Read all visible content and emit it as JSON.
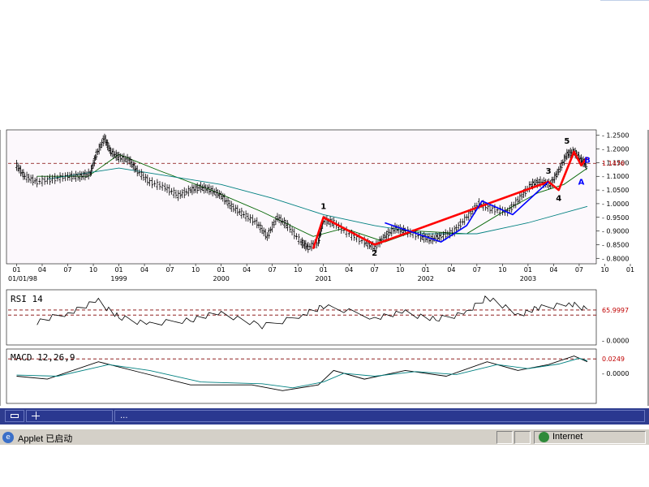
{
  "chart_data": [
    {
      "type": "candlestick",
      "panel": "price",
      "y_ticks": [
        "1.2500",
        "1.2000",
        "1.1500",
        "1.1000",
        "1.0500",
        "1.0000",
        "0.9500",
        "0.9000",
        "0.8500",
        "0.8000"
      ],
      "ylim": [
        0.78,
        1.27
      ],
      "reference_line": 1.1476,
      "reference_label": "1.1476",
      "x_month_ticks": [
        "01",
        "04",
        "07",
        "10",
        "01",
        "04",
        "07",
        "10",
        "01",
        "04",
        "07",
        "10",
        "01",
        "04",
        "07",
        "10",
        "01",
        "04",
        "07",
        "10",
        "01",
        "04",
        "07",
        "10",
        "01",
        "04",
        "07"
      ],
      "x_year_labels": [
        "01/01/98",
        "1999",
        "2000",
        "2001",
        "2002",
        "2003"
      ],
      "price_series": [
        [
          1998.0,
          1.14
        ],
        [
          1998.08,
          1.1
        ],
        [
          1998.2,
          1.08
        ],
        [
          1998.35,
          1.09
        ],
        [
          1998.5,
          1.1
        ],
        [
          1998.62,
          1.1
        ],
        [
          1998.72,
          1.11
        ],
        [
          1998.78,
          1.18
        ],
        [
          1998.86,
          1.24
        ],
        [
          1998.92,
          1.19
        ],
        [
          1999.0,
          1.17
        ],
        [
          1999.1,
          1.16
        ],
        [
          1999.18,
          1.12
        ],
        [
          1999.3,
          1.08
        ],
        [
          1999.45,
          1.06
        ],
        [
          1999.58,
          1.03
        ],
        [
          1999.7,
          1.05
        ],
        [
          1999.8,
          1.06
        ],
        [
          1999.9,
          1.05
        ],
        [
          2000.0,
          1.03
        ],
        [
          2000.1,
          0.99
        ],
        [
          2000.22,
          0.96
        ],
        [
          2000.35,
          0.93
        ],
        [
          2000.45,
          0.88
        ],
        [
          2000.55,
          0.95
        ],
        [
          2000.65,
          0.92
        ],
        [
          2000.78,
          0.86
        ],
        [
          2000.85,
          0.84
        ],
        [
          2000.95,
          0.86
        ],
        [
          2001.0,
          0.94
        ],
        [
          2001.1,
          0.93
        ],
        [
          2001.25,
          0.89
        ],
        [
          2001.4,
          0.86
        ],
        [
          2001.5,
          0.84
        ],
        [
          2001.6,
          0.88
        ],
        [
          2001.7,
          0.91
        ],
        [
          2001.8,
          0.9
        ],
        [
          2001.95,
          0.88
        ],
        [
          2002.05,
          0.87
        ],
        [
          2002.15,
          0.88
        ],
        [
          2002.28,
          0.9
        ],
        [
          2002.4,
          0.95
        ],
        [
          2002.52,
          1.0
        ],
        [
          2002.65,
          0.98
        ],
        [
          2002.8,
          0.97
        ],
        [
          2002.92,
          1.02
        ],
        [
          2003.03,
          1.07
        ],
        [
          2003.12,
          1.08
        ],
        [
          2003.22,
          1.07
        ],
        [
          2003.3,
          1.12
        ],
        [
          2003.38,
          1.18
        ],
        [
          2003.45,
          1.19
        ],
        [
          2003.52,
          1.16
        ],
        [
          2003.58,
          1.14
        ]
      ],
      "moving_averages": [
        {
          "color": "#006400",
          "points": [
            [
              1998.2,
              1.1
            ],
            [
              1998.7,
              1.1
            ],
            [
              1999.0,
              1.18
            ],
            [
              1999.4,
              1.12
            ],
            [
              1999.9,
              1.05
            ],
            [
              2000.4,
              0.97
            ],
            [
              2000.9,
              0.88
            ],
            [
              2001.2,
              0.91
            ],
            [
              2001.6,
              0.86
            ],
            [
              2001.9,
              0.9
            ],
            [
              2002.4,
              0.89
            ],
            [
              2002.8,
              0.98
            ],
            [
              2003.1,
              1.04
            ],
            [
              2003.35,
              1.07
            ],
            [
              2003.58,
              1.13
            ]
          ]
        },
        {
          "color": "#008080",
          "points": [
            [
              1998.3,
              1.09
            ],
            [
              1999.0,
              1.13
            ],
            [
              1999.5,
              1.1
            ],
            [
              2000.0,
              1.07
            ],
            [
              2000.5,
              1.02
            ],
            [
              2001.0,
              0.96
            ],
            [
              2001.5,
              0.92
            ],
            [
              2002.0,
              0.89
            ],
            [
              2002.5,
              0.89
            ],
            [
              2003.0,
              0.93
            ],
            [
              2003.58,
              0.99
            ]
          ]
        }
      ],
      "wave_lines": [
        {
          "color": "#ff0000",
          "points": [
            [
              2000.9,
              0.835
            ],
            [
              2001.0,
              0.95
            ],
            [
              2001.5,
              0.85
            ],
            [
              2003.2,
              1.08
            ],
            [
              2003.3,
              1.05
            ],
            [
              2003.45,
              1.19
            ],
            [
              2003.52,
              1.14
            ],
            [
              2003.58,
              1.17
            ]
          ]
        },
        {
          "color": "#0000ff",
          "points": [
            [
              2001.6,
              0.93
            ],
            [
              2002.15,
              0.86
            ],
            [
              2002.4,
              0.92
            ],
            [
              2002.55,
              1.01
            ],
            [
              2002.85,
              0.96
            ],
            [
              2003.2,
              1.08
            ]
          ]
        }
      ],
      "wave_labels": [
        {
          "text": "1",
          "x": 2001.0,
          "y": 0.98,
          "color": "#000000"
        },
        {
          "text": "2",
          "x": 2001.5,
          "y": 0.81,
          "color": "#000000"
        },
        {
          "text": "3",
          "x": 2003.2,
          "y": 1.11,
          "color": "#000000"
        },
        {
          "text": "4",
          "x": 2003.3,
          "y": 1.01,
          "color": "#000000"
        },
        {
          "text": "5",
          "x": 2003.38,
          "y": 1.22,
          "color": "#000000"
        },
        {
          "text": "A",
          "x": 2003.52,
          "y": 1.07,
          "color": "#0000ff"
        },
        {
          "text": "B",
          "x": 2003.58,
          "y": 1.15,
          "color": "#0000ff"
        }
      ]
    },
    {
      "type": "line",
      "panel": "rsi",
      "title": "RSI 14",
      "ylim": [
        -10,
        110
      ],
      "y_ticks": [
        "0.0000"
      ],
      "reference_line": 65.9997,
      "reference_label": "65.9997",
      "series": [
        [
          1998.2,
          40
        ],
        [
          1998.5,
          60
        ],
        [
          1998.8,
          85
        ],
        [
          1999.0,
          50
        ],
        [
          1999.3,
          35
        ],
        [
          1999.7,
          45
        ],
        [
          2000.0,
          60
        ],
        [
          2000.4,
          30
        ],
        [
          2000.8,
          55
        ],
        [
          2001.0,
          75
        ],
        [
          2001.5,
          50
        ],
        [
          2001.8,
          60
        ],
        [
          2002.1,
          45
        ],
        [
          2002.4,
          60
        ],
        [
          2002.6,
          95
        ],
        [
          2002.9,
          55
        ],
        [
          2003.1,
          70
        ],
        [
          2003.4,
          80
        ],
        [
          2003.58,
          68
        ]
      ]
    },
    {
      "type": "line",
      "panel": "macd",
      "title": "MACD 12,26,9",
      "ylim": [
        -0.052,
        0.042
      ],
      "y_ticks": [
        "0.0000"
      ],
      "reference_line": 0.0249,
      "reference_label": "0.0249",
      "series": [
        {
          "color": "#000000",
          "points": [
            [
              1998.0,
              -0.005
            ],
            [
              1998.3,
              -0.01
            ],
            [
              1998.8,
              0.02
            ],
            [
              1999.2,
              0.002
            ],
            [
              1999.7,
              -0.02
            ],
            [
              2000.3,
              -0.02
            ],
            [
              2000.6,
              -0.03
            ],
            [
              2000.95,
              -0.02
            ],
            [
              2001.1,
              0.005
            ],
            [
              2001.4,
              -0.01
            ],
            [
              2001.8,
              0.005
            ],
            [
              2002.2,
              -0.005
            ],
            [
              2002.6,
              0.02
            ],
            [
              2002.9,
              0.005
            ],
            [
              2003.2,
              0.015
            ],
            [
              2003.45,
              0.03
            ],
            [
              2003.58,
              0.02
            ]
          ]
        },
        {
          "color": "#008080",
          "points": [
            [
              1998.0,
              -0.003
            ],
            [
              1998.4,
              -0.005
            ],
            [
              1998.9,
              0.015
            ],
            [
              1999.3,
              0.005
            ],
            [
              1999.8,
              -0.015
            ],
            [
              2000.4,
              -0.018
            ],
            [
              2000.7,
              -0.025
            ],
            [
              2001.0,
              -0.015
            ],
            [
              2001.2,
              0.0
            ],
            [
              2001.5,
              -0.005
            ],
            [
              2001.9,
              0.003
            ],
            [
              2002.3,
              -0.002
            ],
            [
              2002.7,
              0.015
            ],
            [
              2003.0,
              0.008
            ],
            [
              2003.3,
              0.016
            ],
            [
              2003.5,
              0.026
            ],
            [
              2003.58,
              0.022
            ]
          ]
        }
      ]
    }
  ],
  "taskbar": {
    "item": "..."
  },
  "status_bar": {
    "applet": "Applet 已启动",
    "zone": "Internet"
  }
}
